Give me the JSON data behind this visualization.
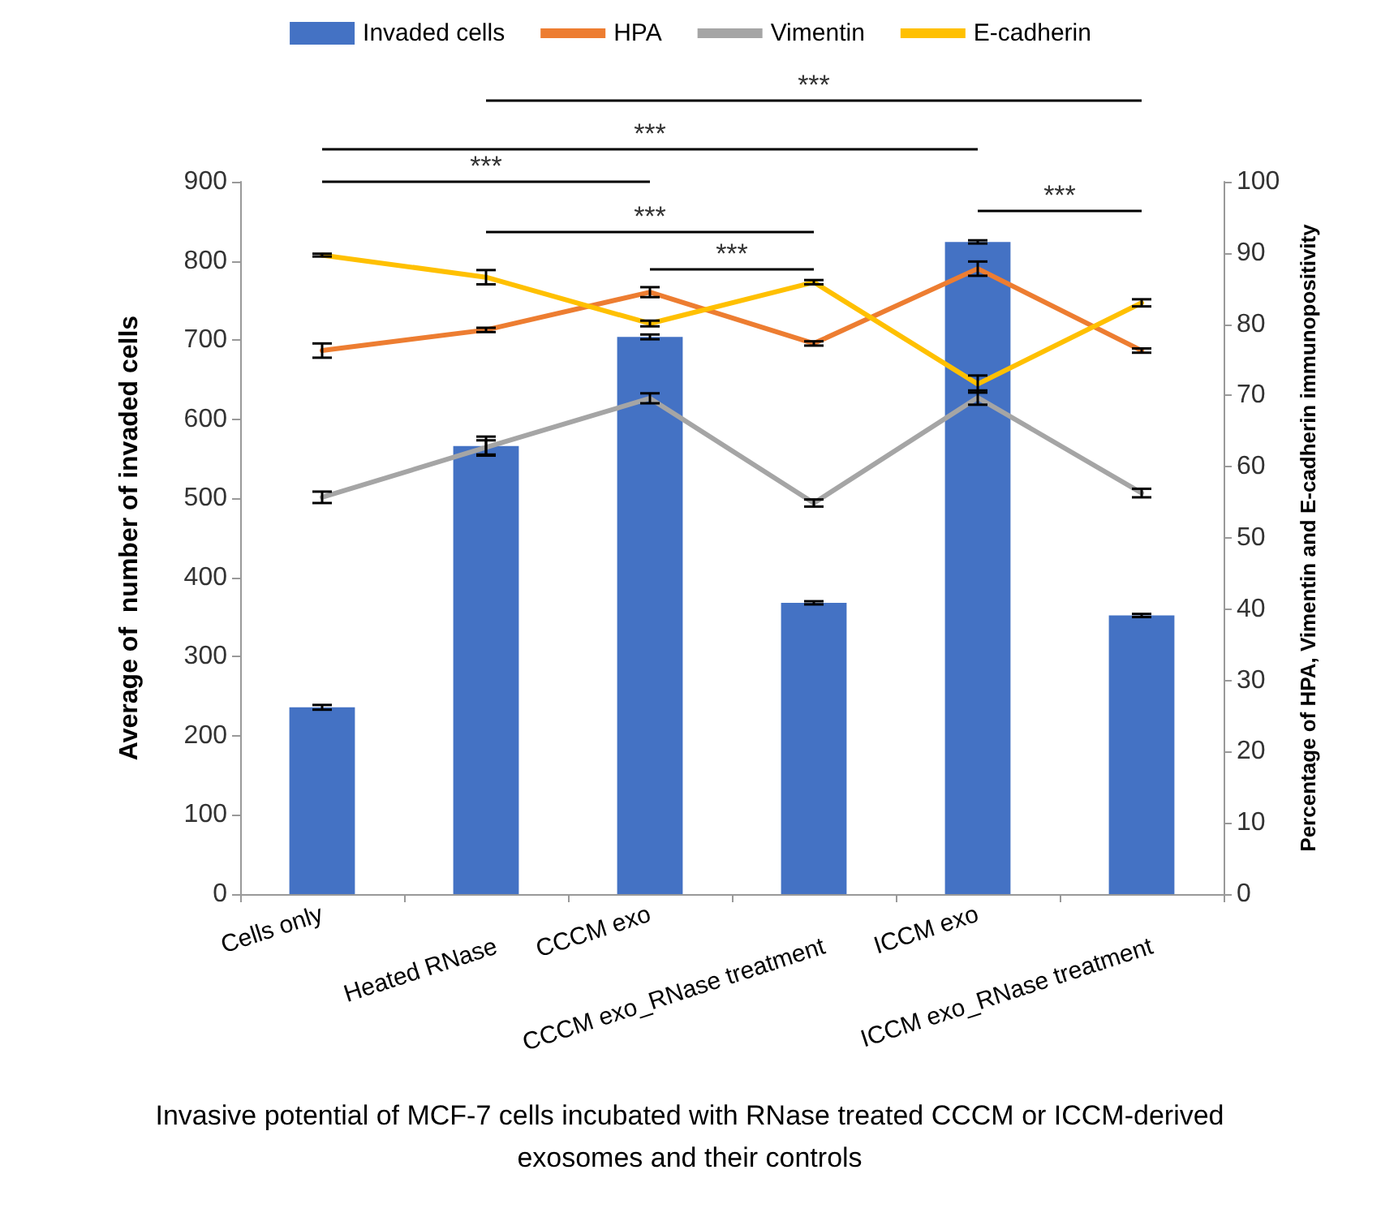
{
  "chart_data": {
    "type": "bar",
    "xlabel": "Invasive potential of MCF-7 cells incubated with RNase treated CCCM or ICCM-derived exosomes and their controls",
    "ylabel": "Average of  number of invaded cells",
    "y2label": "Percentage of HPA, Vimentin and E-cadherin immunopositivity",
    "categories": [
      "Cells only",
      "Heated RNase",
      "CCCM exo",
      "CCCM exo_RNase treatment",
      "ICCM exo",
      "ICCM exo_RNase treatment"
    ],
    "series": [
      {
        "name": "Invaded cells",
        "color": "#4472c4",
        "values": [
          236,
          566,
          704,
          368,
          824,
          352
        ],
        "errors": [
          3,
          12,
          3,
          2,
          2,
          2
        ]
      },
      {
        "name": "HPA",
        "type": "line",
        "axis": "y2",
        "color": "#ed7d31",
        "values": [
          76.3,
          79.2,
          84.5,
          77.3,
          87.8,
          76.3
        ],
        "errors": [
          1,
          0.3,
          0.7,
          0.3,
          1,
          0.3
        ]
      },
      {
        "name": "Vimentin",
        "type": "line",
        "axis": "y2",
        "color": "#a5a5a5",
        "values": [
          55.7,
          62.7,
          69.6,
          54.9,
          69.7,
          56.3
        ],
        "errors": [
          0.8,
          1,
          0.7,
          0.5,
          1,
          0.6
        ]
      },
      {
        "name": "E-cadherin",
        "type": "line",
        "axis": "y2",
        "color": "#ffc000",
        "values": [
          89.7,
          86.6,
          80.1,
          85.9,
          71.6,
          83
        ],
        "errors": [
          0.2,
          1,
          0.4,
          0.3,
          1.2,
          0.5
        ]
      }
    ],
    "ylim": [
      0,
      900
    ],
    "yticks": [
      0,
      100,
      200,
      300,
      400,
      500,
      600,
      700,
      800,
      900
    ],
    "y2lim": [
      0,
      100
    ],
    "y2ticks": [
      0,
      10,
      20,
      30,
      40,
      50,
      60,
      70,
      80,
      90,
      100
    ],
    "annotations": [
      "***",
      "***",
      "***",
      "***",
      "***",
      "***"
    ],
    "legend": "top",
    "grid": false,
    "marker": "none",
    "line_style": "solid"
  }
}
